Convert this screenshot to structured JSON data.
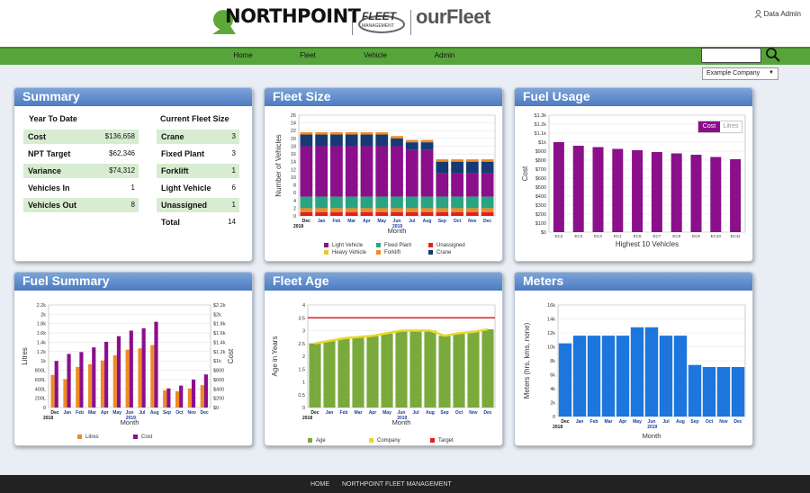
{
  "header": {
    "brand": "NORTHPOINT",
    "fm_title": "FLEET",
    "fm_subtitle": "MANAGEMENT",
    "ourfleet": "ourFleet",
    "user": "Data Admin"
  },
  "nav": {
    "items": [
      "Home",
      "Fleet",
      "Vehicle",
      "Admin"
    ]
  },
  "company": {
    "selected": "Example Company"
  },
  "colors": {
    "nav": "#57a53a",
    "panel_header": "#5e8bcb",
    "purple": "#8b0f8b",
    "orange": "#f08a24",
    "green": "#7aaa3c",
    "blue": "#1d76dd"
  },
  "summary": {
    "title": "Summary",
    "ytd_header": "Year To Date",
    "fleet_header": "Current Fleet Size",
    "ytd": [
      {
        "label": "Cost",
        "value": "$136,658",
        "hl": true
      },
      {
        "label": "NPT Target",
        "value": "$62,346",
        "hl": false
      },
      {
        "label": "Variance",
        "value": "$74,312",
        "hl": true
      },
      {
        "label": "Vehicles In",
        "value": "1",
        "hl": false
      },
      {
        "label": "Vehicles Out",
        "value": "8",
        "hl": true
      }
    ],
    "fleet": [
      {
        "label": "Crane",
        "value": "3",
        "hl": true
      },
      {
        "label": "Fixed Plant",
        "value": "3",
        "hl": false
      },
      {
        "label": "Forklift",
        "value": "1",
        "hl": true
      },
      {
        "label": "Light Vehicle",
        "value": "6",
        "hl": false
      },
      {
        "label": "Unassigned",
        "value": "1",
        "hl": true
      },
      {
        "label": "Total",
        "value": "14",
        "hl": false
      }
    ]
  },
  "months": [
    "Dec",
    "Jan",
    "Feb",
    "Mar",
    "Apr",
    "May",
    "Jun",
    "Jul",
    "Aug",
    "Sep",
    "Oct",
    "Nov",
    "Dec"
  ],
  "year_labels": [
    "2018",
    "2019"
  ],
  "chart_data": [
    {
      "id": "fleet-size",
      "title": "Fleet Size",
      "type": "bar",
      "stacked": true,
      "xlabel": "Month",
      "ylabel": "Number of Vehicles",
      "ylim": [
        0,
        26
      ],
      "yticks": [
        0,
        2,
        4,
        6,
        8,
        10,
        12,
        14,
        16,
        18,
        20,
        22,
        24,
        26
      ],
      "series": [
        {
          "name": "Light Vehicle",
          "color": "#8b0f8b",
          "values": [
            13,
            13,
            13,
            13,
            13,
            13,
            13,
            12,
            12,
            6,
            6,
            6,
            6
          ]
        },
        {
          "name": "Heavy Vehicle",
          "color": "#e8c82a",
          "values": [
            0,
            0,
            0,
            0,
            0,
            0,
            0,
            0,
            0,
            0,
            0,
            0,
            0
          ]
        },
        {
          "name": "Fixed Plant",
          "color": "#2aa382",
          "values": [
            3,
            3,
            3,
            3,
            3,
            3,
            3,
            3,
            3,
            3,
            3,
            3,
            3
          ]
        },
        {
          "name": "Forklift",
          "color": "#f08a24",
          "values": [
            1,
            1,
            1,
            1,
            1,
            1,
            1,
            1,
            1,
            1,
            1,
            1,
            1
          ]
        },
        {
          "name": "Unassigned",
          "color": "#e02020",
          "values": [
            1,
            1,
            1,
            1,
            1,
            1,
            1,
            1,
            1,
            1,
            1,
            1,
            1
          ]
        },
        {
          "name": "Crane",
          "color": "#163a73",
          "values": [
            3,
            3,
            3,
            3,
            3,
            3,
            2,
            2,
            2,
            3,
            3,
            3,
            3
          ]
        }
      ]
    },
    {
      "id": "fuel-usage",
      "title": "Fuel Usage",
      "type": "bar",
      "xlabel": "Highest 10 Vehicles",
      "ylabel": "Cost",
      "ylim": [
        0,
        1300
      ],
      "yticks": [
        "$0",
        "$100",
        "$200",
        "$300",
        "$400",
        "$500",
        "$600",
        "$700",
        "$800",
        "$900",
        "$1k",
        "$1.1k",
        "$1.2k",
        "$1.3k"
      ],
      "categories": [
        "EC2",
        "EC3",
        "EC4",
        "EC1",
        "EC5",
        "EC7",
        "EC8",
        "EC6",
        "EC10",
        "EC11"
      ],
      "values": [
        1000,
        960,
        945,
        925,
        910,
        890,
        875,
        860,
        835,
        810
      ],
      "color": "#8b0f8b",
      "toggle": [
        "Cost",
        "Litres"
      ]
    },
    {
      "id": "fuel-summary",
      "title": "Fuel Summary",
      "type": "bar",
      "xlabel": "Month",
      "ylabel": "Litres",
      "y2label": "Cost",
      "yticks": [
        "0",
        "200L",
        "400L",
        "600L",
        "800L",
        "1k",
        "1.2k",
        "1.4k",
        "1.6k",
        "1.8k",
        "2k",
        "2.2k"
      ],
      "y2ticks": [
        "$0",
        "$200",
        "$400",
        "$600",
        "$800",
        "$1k",
        "$1.2k",
        "$1.4k",
        "$1.6k",
        "$1.8k",
        "$2k",
        "$2.2k"
      ],
      "ylim": [
        0,
        2200
      ],
      "series": [
        {
          "name": "Litres",
          "color": "#f08a24",
          "values": [
            700,
            610,
            870,
            930,
            1010,
            1120,
            1240,
            1270,
            1340,
            370,
            350,
            410,
            480
          ]
        },
        {
          "name": "Cost",
          "color": "#8b0f8b",
          "values": [
            1000,
            1150,
            1190,
            1290,
            1410,
            1530,
            1650,
            1700,
            1840,
            410,
            470,
            600,
            710
          ]
        }
      ]
    },
    {
      "id": "fleet-age",
      "title": "Fleet Age",
      "type": "bar",
      "xlabel": "Month",
      "ylabel": "Age in Years",
      "ylim": [
        0,
        4
      ],
      "yticks": [
        "0",
        "0.5",
        "1",
        "1.5",
        "2",
        "2.5",
        "3",
        "3.5",
        "4"
      ],
      "series": [
        {
          "name": "Age",
          "color": "#7aaa3c",
          "values": [
            2.5,
            2.6,
            2.7,
            2.75,
            2.8,
            2.9,
            3.0,
            3.0,
            3.0,
            2.8,
            2.9,
            2.95,
            3.05
          ]
        },
        {
          "name": "Company",
          "color": "#e8d82a",
          "values": [
            2.5,
            2.6,
            2.7,
            2.75,
            2.8,
            2.9,
            3.0,
            3.0,
            3.0,
            2.8,
            2.9,
            2.95,
            3.05
          ]
        },
        {
          "name": "Target",
          "color": "#e02020",
          "values": [
            3.5,
            3.5,
            3.5,
            3.5,
            3.5,
            3.5,
            3.5,
            3.5,
            3.5,
            3.5,
            3.5,
            3.5,
            3.5
          ]
        }
      ]
    },
    {
      "id": "meters",
      "title": "Meters",
      "type": "bar",
      "xlabel": "Month",
      "ylabel": "Meters (hrs, kms, none)",
      "ylim": [
        0,
        16000
      ],
      "yticks": [
        "0",
        "2k",
        "4k",
        "6k",
        "8k",
        "10k",
        "12k",
        "14k",
        "16k"
      ],
      "series": [
        {
          "name": "Meters",
          "color": "#1d76dd",
          "values": [
            10500,
            11600,
            11600,
            11600,
            11600,
            12800,
            12800,
            11600,
            11600,
            7400,
            7100,
            7100,
            7100
          ]
        }
      ]
    }
  ],
  "footer": {
    "links": [
      "HOME",
      "NORTHPOINT FLEET MANAGEMENT"
    ]
  }
}
